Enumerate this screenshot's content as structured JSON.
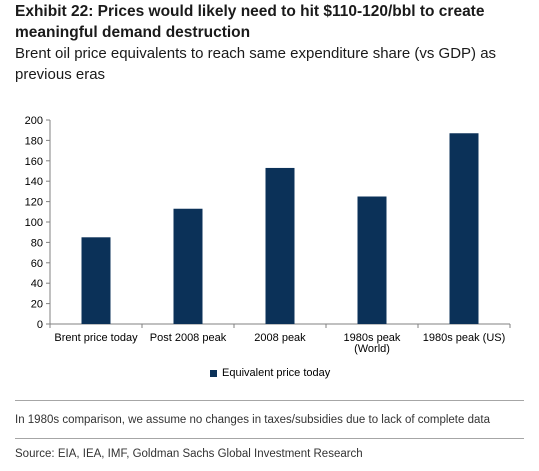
{
  "header": {
    "title": "Exhibit 22: Prices would likely need to hit $110-120/bbl to create meaningful demand destruction",
    "subtitle": "Brent oil price equivalents to reach same expenditure share (vs GDP) as previous eras"
  },
  "chart_data": {
    "type": "bar",
    "title": "",
    "xlabel": "",
    "ylabel": "",
    "categories": [
      [
        "Brent price today"
      ],
      [
        "Post 2008 peak"
      ],
      [
        "2008 peak"
      ],
      [
        "1980s peak",
        "(World)"
      ],
      [
        "1980s peak (US)"
      ]
    ],
    "series": [
      {
        "name": "Equivalent price today",
        "values": [
          85,
          113,
          153,
          125,
          187
        ],
        "color": "#0b3158"
      }
    ],
    "ylim": [
      0,
      200
    ],
    "yticks": [
      0,
      20,
      40,
      60,
      80,
      100,
      120,
      140,
      160,
      180,
      200
    ],
    "grid": false,
    "legend_position": "bottom-center"
  },
  "footer": {
    "note": "In 1980s comparison, we assume no changes in taxes/subsidies due to lack of complete data",
    "source": "Source: EIA, IEA, IMF, Goldman Sachs Global Investment Research"
  }
}
